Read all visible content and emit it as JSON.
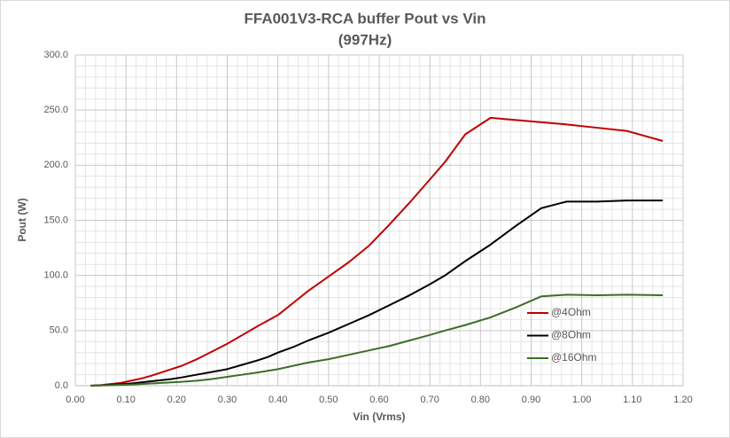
{
  "chart_data": {
    "type": "line",
    "title": "FFA001V3-RCA buffer Pout vs Vin",
    "subtitle": "(997Hz)",
    "x_label": "Vin (Vrms)",
    "y_label": "Pout (W)",
    "x": [
      0.03,
      0.05,
      0.07,
      0.09,
      0.11,
      0.13,
      0.15,
      0.17,
      0.19,
      0.21,
      0.24,
      0.27,
      0.3,
      0.33,
      0.36,
      0.38,
      0.4,
      0.43,
      0.46,
      0.5,
      0.54,
      0.58,
      0.62,
      0.66,
      0.7,
      0.73,
      0.77,
      0.82,
      0.87,
      0.92,
      0.97,
      1.03,
      1.09,
      1.16
    ],
    "series": [
      {
        "name": "@4Ohm",
        "color": "#c00000",
        "values": [
          0,
          0.5,
          1.5,
          2.5,
          4.5,
          6.5,
          9,
          12,
          15,
          18,
          24,
          31,
          38,
          46,
          54,
          59,
          64,
          75,
          86,
          99,
          112,
          127,
          146,
          166,
          187,
          203,
          228,
          243,
          241,
          239,
          237,
          234,
          231,
          222
        ]
      },
      {
        "name": "@8Ohm",
        "color": "#000000",
        "values": [
          0,
          0.3,
          0.8,
          1.3,
          2,
          3,
          4,
          5,
          6,
          7.5,
          10,
          12.5,
          15,
          19,
          23,
          26,
          30,
          35,
          41,
          48,
          56,
          64,
          73,
          82,
          92,
          100,
          113,
          128,
          145,
          161,
          167,
          167,
          168,
          168
        ]
      },
      {
        "name": "@16Ohm",
        "color": "#3b6e2a",
        "values": [
          0,
          0.2,
          0.4,
          0.7,
          1,
          1.5,
          2,
          2.5,
          3,
          3.5,
          4.5,
          6,
          8,
          10,
          12,
          13.5,
          15,
          18,
          21,
          24,
          28,
          32,
          36,
          41,
          46,
          50,
          55,
          62,
          71,
          81,
          82.5,
          82,
          82.5,
          82
        ]
      }
    ],
    "xlim": [
      0,
      1.2
    ],
    "ylim": [
      0,
      300
    ],
    "xticks": [
      {
        "value": 0,
        "label": "0.00"
      },
      {
        "value": 0.1,
        "label": "0.10"
      },
      {
        "value": 0.2,
        "label": "0.20"
      },
      {
        "value": 0.3,
        "label": "0.30"
      },
      {
        "value": 0.4,
        "label": "0.40"
      },
      {
        "value": 0.5,
        "label": "0.50"
      },
      {
        "value": 0.6,
        "label": "0.60"
      },
      {
        "value": 0.7,
        "label": "0.70"
      },
      {
        "value": 0.8,
        "label": "0.80"
      },
      {
        "value": 0.9,
        "label": "0.90"
      },
      {
        "value": 1.0,
        "label": "1.00"
      },
      {
        "value": 1.1,
        "label": "1.10"
      },
      {
        "value": 1.2,
        "label": "1.20"
      }
    ],
    "yticks": [
      {
        "value": 0,
        "label": "0.0"
      },
      {
        "value": 50,
        "label": "50.0"
      },
      {
        "value": 100,
        "label": "100.0"
      },
      {
        "value": 150,
        "label": "150.0"
      },
      {
        "value": 200,
        "label": "200.0"
      },
      {
        "value": 250,
        "label": "250.0"
      },
      {
        "value": 300,
        "label": "300.0"
      }
    ],
    "grid": true,
    "legend": "inside-right"
  }
}
